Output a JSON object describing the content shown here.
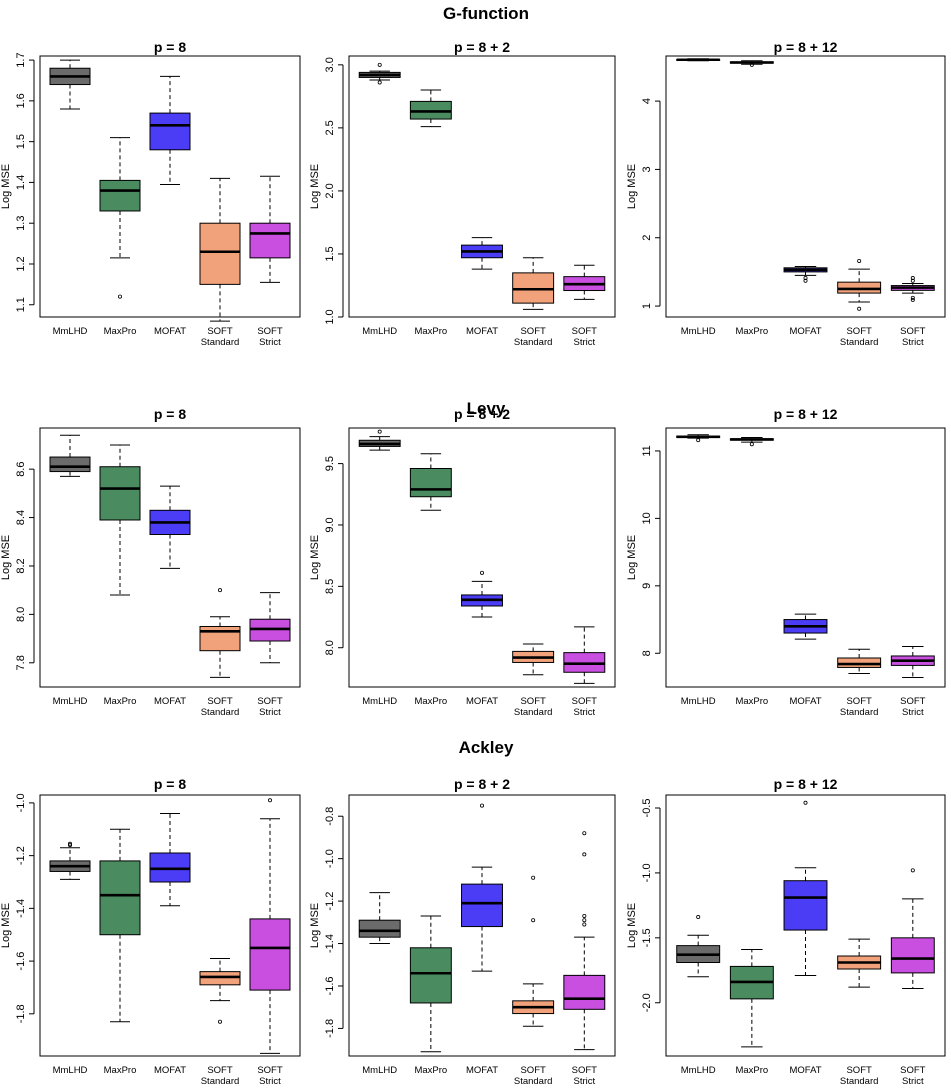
{
  "colors": {
    "MmLHD": "#6b6b6b",
    "MaxPro": "#4a8c60",
    "MOFAT": "#4b3cf5",
    "SOFT Standard": "#f2a27a",
    "SOFT Strict": "#c84fe0"
  },
  "chart_data": [
    {
      "type": "boxplot",
      "group_title": "G-function",
      "title": "p = 8",
      "ylabel": "Log MSE",
      "ylim": [
        1.07,
        1.71
      ],
      "yticks": [
        1.1,
        1.2,
        1.3,
        1.4,
        1.5,
        1.6,
        1.7
      ],
      "yticks_labels": [
        "1.1",
        "1.2",
        "1.3",
        "1.4",
        "1.5",
        "1.6",
        "1.7"
      ],
      "categories": [
        "MmLHD",
        "MaxPro",
        "MOFAT",
        "SOFT Standard",
        "SOFT Strict"
      ],
      "category_lines": [
        [
          "MmLHD"
        ],
        [
          "MaxPro"
        ],
        [
          "MOFAT"
        ],
        [
          "SOFT",
          "Standard"
        ],
        [
          "SOFT",
          "Strict"
        ]
      ],
      "boxes": [
        {
          "min": 1.58,
          "q1": 1.64,
          "median": 1.66,
          "q3": 1.68,
          "max": 1.7,
          "outliers": []
        },
        {
          "min": 1.215,
          "q1": 1.33,
          "median": 1.38,
          "q3": 1.405,
          "max": 1.51,
          "outliers": [
            1.12
          ]
        },
        {
          "min": 1.395,
          "q1": 1.48,
          "median": 1.54,
          "q3": 1.57,
          "max": 1.66,
          "outliers": []
        },
        {
          "min": 1.06,
          "q1": 1.15,
          "median": 1.23,
          "q3": 1.3,
          "max": 1.41,
          "outliers": []
        },
        {
          "min": 1.155,
          "q1": 1.215,
          "median": 1.275,
          "q3": 1.3,
          "max": 1.415,
          "outliers": []
        }
      ]
    },
    {
      "type": "boxplot",
      "group_title": "",
      "title": "p = 8 + 2",
      "ylabel": "Log MSE",
      "ylim": [
        1.0,
        3.07
      ],
      "yticks": [
        1.0,
        1.5,
        2.0,
        2.5,
        3.0
      ],
      "yticks_labels": [
        "1.0",
        "1.5",
        "2.0",
        "2.5",
        "3.0"
      ],
      "categories": [
        "MmLHD",
        "MaxPro",
        "MOFAT",
        "SOFT Standard",
        "SOFT Strict"
      ],
      "category_lines": [
        [
          "MmLHD"
        ],
        [
          "MaxPro"
        ],
        [
          "MOFAT"
        ],
        [
          "SOFT",
          "Standard"
        ],
        [
          "SOFT",
          "Strict"
        ]
      ],
      "boxes": [
        {
          "min": 2.88,
          "q1": 2.9,
          "median": 2.92,
          "q3": 2.94,
          "max": 2.95,
          "outliers": [
            3.0,
            2.86
          ]
        },
        {
          "min": 2.51,
          "q1": 2.57,
          "median": 2.63,
          "q3": 2.71,
          "max": 2.8,
          "outliers": []
        },
        {
          "min": 1.38,
          "q1": 1.47,
          "median": 1.52,
          "q3": 1.57,
          "max": 1.63,
          "outliers": []
        },
        {
          "min": 1.06,
          "q1": 1.11,
          "median": 1.22,
          "q3": 1.35,
          "max": 1.47,
          "outliers": []
        },
        {
          "min": 1.14,
          "q1": 1.21,
          "median": 1.26,
          "q3": 1.32,
          "max": 1.41,
          "outliers": []
        }
      ]
    },
    {
      "type": "boxplot",
      "group_title": "",
      "title": "p = 8 + 12",
      "ylabel": "Log MSE",
      "ylim": [
        0.84,
        4.66
      ],
      "yticks": [
        1,
        2,
        3,
        4
      ],
      "yticks_labels": [
        "1",
        "2",
        "3",
        "4"
      ],
      "categories": [
        "MmLHD",
        "MaxPro",
        "MOFAT",
        "SOFT Standard",
        "SOFT Strict"
      ],
      "category_lines": [
        [
          "MmLHD"
        ],
        [
          "MaxPro"
        ],
        [
          "MOFAT"
        ],
        [
          "SOFT",
          "Standard"
        ],
        [
          "SOFT",
          "Strict"
        ]
      ],
      "boxes": [
        {
          "min": 4.59,
          "q1": 4.6,
          "median": 4.605,
          "q3": 4.61,
          "max": 4.62,
          "outliers": []
        },
        {
          "min": 4.54,
          "q1": 4.555,
          "median": 4.565,
          "q3": 4.575,
          "max": 4.59,
          "outliers": [
            4.53
          ]
        },
        {
          "min": 1.45,
          "q1": 1.5,
          "median": 1.53,
          "q3": 1.56,
          "max": 1.58,
          "outliers": [
            1.41,
            1.37
          ]
        },
        {
          "min": 1.06,
          "q1": 1.19,
          "median": 1.25,
          "q3": 1.35,
          "max": 1.54,
          "outliers": [
            1.66,
            0.96
          ]
        },
        {
          "min": 1.19,
          "q1": 1.23,
          "median": 1.27,
          "q3": 1.3,
          "max": 1.33,
          "outliers": [
            1.41,
            1.37,
            1.12,
            1.09
          ]
        }
      ]
    },
    {
      "type": "boxplot",
      "group_title": "Levy",
      "title": "p = 8",
      "ylabel": "Log MSE",
      "ylim": [
        7.7,
        8.77
      ],
      "yticks": [
        7.8,
        8.0,
        8.2,
        8.4,
        8.6
      ],
      "yticks_labels": [
        "7.8",
        "8.0",
        "8.2",
        "8.4",
        "8.6"
      ],
      "categories": [
        "MmLHD",
        "MaxPro",
        "MOFAT",
        "SOFT Standard",
        "SOFT Strict"
      ],
      "category_lines": [
        [
          "MmLHD"
        ],
        [
          "MaxPro"
        ],
        [
          "MOFAT"
        ],
        [
          "SOFT",
          "Standard"
        ],
        [
          "SOFT",
          "Strict"
        ]
      ],
      "boxes": [
        {
          "min": 8.57,
          "q1": 8.59,
          "median": 8.61,
          "q3": 8.65,
          "max": 8.74,
          "outliers": []
        },
        {
          "min": 8.08,
          "q1": 8.39,
          "median": 8.52,
          "q3": 8.61,
          "max": 8.7,
          "outliers": []
        },
        {
          "min": 8.19,
          "q1": 8.33,
          "median": 8.38,
          "q3": 8.43,
          "max": 8.53,
          "outliers": []
        },
        {
          "min": 7.74,
          "q1": 7.85,
          "median": 7.93,
          "q3": 7.95,
          "max": 7.99,
          "outliers": [
            8.1
          ]
        },
        {
          "min": 7.8,
          "q1": 7.89,
          "median": 7.94,
          "q3": 7.98,
          "max": 8.09,
          "outliers": []
        }
      ]
    },
    {
      "type": "boxplot",
      "group_title": "",
      "title": "p = 8 + 2",
      "ylabel": "Log MSE",
      "ylim": [
        7.68,
        9.79
      ],
      "yticks": [
        8.0,
        8.5,
        9.0,
        9.5
      ],
      "yticks_labels": [
        "8.0",
        "8.5",
        "9.0",
        "9.5"
      ],
      "categories": [
        "MmLHD",
        "MaxPro",
        "MOFAT",
        "SOFT Standard",
        "SOFT Strict"
      ],
      "category_lines": [
        [
          "MmLHD"
        ],
        [
          "MaxPro"
        ],
        [
          "MOFAT"
        ],
        [
          "SOFT",
          "Standard"
        ],
        [
          "SOFT",
          "Strict"
        ]
      ],
      "boxes": [
        {
          "min": 9.61,
          "q1": 9.64,
          "median": 9.66,
          "q3": 9.69,
          "max": 9.72,
          "outliers": [
            9.76
          ]
        },
        {
          "min": 9.12,
          "q1": 9.23,
          "median": 9.29,
          "q3": 9.46,
          "max": 9.58,
          "outliers": []
        },
        {
          "min": 8.25,
          "q1": 8.34,
          "median": 8.39,
          "q3": 8.43,
          "max": 8.54,
          "outliers": [
            8.61
          ]
        },
        {
          "min": 7.78,
          "q1": 7.88,
          "median": 7.92,
          "q3": 7.97,
          "max": 8.03,
          "outliers": []
        },
        {
          "min": 7.71,
          "q1": 7.8,
          "median": 7.87,
          "q3": 7.96,
          "max": 8.17,
          "outliers": []
        }
      ]
    },
    {
      "type": "boxplot",
      "group_title": "",
      "title": "p = 8 + 12",
      "ylabel": "Log MSE",
      "ylim": [
        7.5,
        11.34
      ],
      "yticks": [
        8,
        9,
        10,
        11
      ],
      "yticks_labels": [
        "8",
        "9",
        "10",
        "11"
      ],
      "categories": [
        "MmLHD",
        "MaxPro",
        "MOFAT",
        "SOFT Standard",
        "SOFT Strict"
      ],
      "category_lines": [
        [
          "MmLHD"
        ],
        [
          "MaxPro"
        ],
        [
          "MOFAT"
        ],
        [
          "SOFT",
          "Standard"
        ],
        [
          "SOFT",
          "Strict"
        ]
      ],
      "boxes": [
        {
          "min": 11.19,
          "q1": 11.2,
          "median": 11.21,
          "q3": 11.22,
          "max": 11.24,
          "outliers": [
            11.16
          ]
        },
        {
          "min": 11.13,
          "q1": 11.16,
          "median": 11.17,
          "q3": 11.18,
          "max": 11.2,
          "outliers": [
            11.1
          ]
        },
        {
          "min": 8.21,
          "q1": 8.3,
          "median": 8.4,
          "q3": 8.5,
          "max": 8.58,
          "outliers": []
        },
        {
          "min": 7.7,
          "q1": 7.79,
          "median": 7.84,
          "q3": 7.93,
          "max": 8.06,
          "outliers": []
        },
        {
          "min": 7.64,
          "q1": 7.82,
          "median": 7.89,
          "q3": 7.96,
          "max": 8.1,
          "outliers": []
        }
      ]
    },
    {
      "type": "boxplot",
      "group_title": "Ackley",
      "title": "p = 8",
      "ylabel": "Log MSE",
      "ylim": [
        -1.96,
        -0.97
      ],
      "yticks": [
        -1.8,
        -1.6,
        -1.4,
        -1.2,
        -1.0
      ],
      "yticks_labels": [
        "-1.8",
        "-1.6",
        "-1.4",
        "-1.2",
        "-1.0"
      ],
      "categories": [
        "MmLHD",
        "MaxPro",
        "MOFAT",
        "SOFT Standard",
        "SOFT Strict"
      ],
      "category_lines": [
        [
          "MmLHD"
        ],
        [
          "MaxPro"
        ],
        [
          "MOFAT"
        ],
        [
          "SOFT",
          "Standard"
        ],
        [
          "SOFT",
          "Strict"
        ]
      ],
      "boxes": [
        {
          "min": -1.29,
          "q1": -1.26,
          "median": -1.24,
          "q3": -1.22,
          "max": -1.17,
          "outliers": [
            -1.155,
            -1.16
          ]
        },
        {
          "min": -1.83,
          "q1": -1.5,
          "median": -1.35,
          "q3": -1.22,
          "max": -1.1,
          "outliers": []
        },
        {
          "min": -1.39,
          "q1": -1.3,
          "median": -1.25,
          "q3": -1.19,
          "max": -1.04,
          "outliers": []
        },
        {
          "min": -1.75,
          "q1": -1.69,
          "median": -1.66,
          "q3": -1.64,
          "max": -1.59,
          "outliers": [
            -1.83
          ]
        },
        {
          "min": -1.95,
          "q1": -1.71,
          "median": -1.55,
          "q3": -1.44,
          "max": -1.06,
          "outliers": [
            -0.99
          ]
        }
      ]
    },
    {
      "type": "boxplot",
      "group_title": "",
      "title": "p = 8 + 2",
      "ylabel": "Log MSE",
      "ylim": [
        -1.93,
        -0.7
      ],
      "yticks": [
        -1.8,
        -1.6,
        -1.4,
        -1.2,
        -1.0,
        -0.8
      ],
      "yticks_labels": [
        "-1.8",
        "-1.6",
        "-1.4",
        "-1.2",
        "-1.0",
        "-0.8"
      ],
      "categories": [
        "MmLHD",
        "MaxPro",
        "MOFAT",
        "SOFT Standard",
        "SOFT Strict"
      ],
      "category_lines": [
        [
          "MmLHD"
        ],
        [
          "MaxPro"
        ],
        [
          "MOFAT"
        ],
        [
          "SOFT",
          "Standard"
        ],
        [
          "SOFT",
          "Strict"
        ]
      ],
      "boxes": [
        {
          "min": -1.4,
          "q1": -1.37,
          "median": -1.34,
          "q3": -1.29,
          "max": -1.16,
          "outliers": []
        },
        {
          "min": -1.91,
          "q1": -1.68,
          "median": -1.54,
          "q3": -1.42,
          "max": -1.27,
          "outliers": []
        },
        {
          "min": -1.53,
          "q1": -1.32,
          "median": -1.21,
          "q3": -1.12,
          "max": -1.04,
          "outliers": [
            -0.75
          ]
        },
        {
          "min": -1.79,
          "q1": -1.73,
          "median": -1.7,
          "q3": -1.67,
          "max": -1.59,
          "outliers": [
            -1.09,
            -1.29
          ]
        },
        {
          "min": -1.9,
          "q1": -1.71,
          "median": -1.66,
          "q3": -1.55,
          "max": -1.37,
          "outliers": [
            -0.88,
            -0.98,
            -1.27,
            -1.29,
            -1.31
          ]
        }
      ]
    },
    {
      "type": "boxplot",
      "group_title": "",
      "title": "p = 8 + 12",
      "ylabel": "Log MSE",
      "ylim": [
        -2.41,
        -0.4
      ],
      "yticks": [
        -2.0,
        -1.5,
        -1.0,
        -0.5
      ],
      "yticks_labels": [
        "-2.0",
        "-1.5",
        "-1.0",
        "-0.5"
      ],
      "categories": [
        "MmLHD",
        "MaxPro",
        "MOFAT",
        "SOFT Standard",
        "SOFT Strict"
      ],
      "category_lines": [
        [
          "MmLHD"
        ],
        [
          "MaxPro"
        ],
        [
          "MOFAT"
        ],
        [
          "SOFT",
          "Standard"
        ],
        [
          "SOFT",
          "Strict"
        ]
      ],
      "boxes": [
        {
          "min": -1.8,
          "q1": -1.69,
          "median": -1.63,
          "q3": -1.56,
          "max": -1.48,
          "outliers": [
            -1.34
          ]
        },
        {
          "min": -2.34,
          "q1": -1.97,
          "median": -1.84,
          "q3": -1.72,
          "max": -1.59,
          "outliers": []
        },
        {
          "min": -1.79,
          "q1": -1.44,
          "median": -1.19,
          "q3": -1.06,
          "max": -0.96,
          "outliers": [
            -0.46
          ]
        },
        {
          "min": -1.88,
          "q1": -1.74,
          "median": -1.69,
          "q3": -1.64,
          "max": -1.51,
          "outliers": []
        },
        {
          "min": -1.89,
          "q1": -1.77,
          "median": -1.66,
          "q3": -1.5,
          "max": -1.2,
          "outliers": [
            -0.98
          ]
        }
      ]
    }
  ]
}
